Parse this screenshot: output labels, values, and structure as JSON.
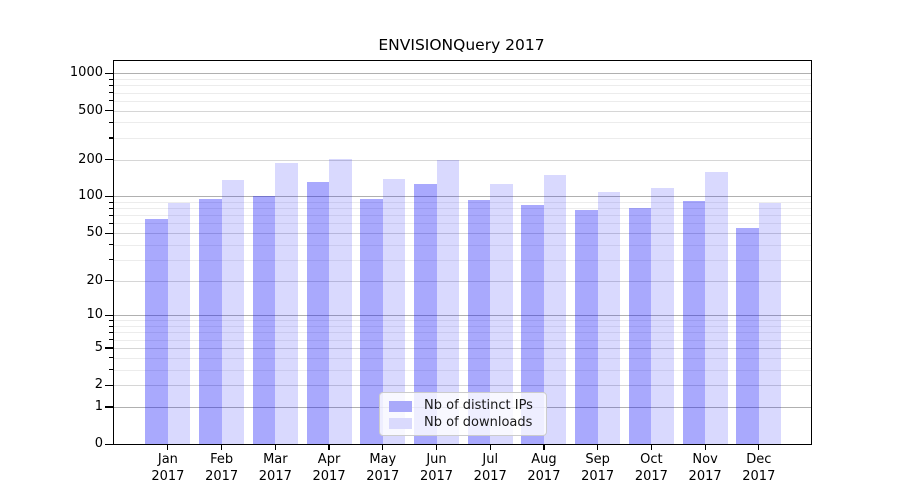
{
  "chart_data": {
    "type": "bar",
    "title": "ENVISIONQuery 2017",
    "xlabel": "",
    "ylabel": "",
    "yscale": "log10(value+1)",
    "ylim": [
      0,
      1261
    ],
    "grid": "major and minor horizontal gridlines",
    "legend_position": "lower center",
    "y_tick_labels": [
      1000,
      500,
      200,
      100,
      50,
      20,
      10,
      5,
      2,
      1,
      0
    ],
    "categories": [
      "Jan 2017",
      "Feb 2017",
      "Mar 2017",
      "Apr 2017",
      "May 2017",
      "Jun 2017",
      "Jul 2017",
      "Aug 2017",
      "Sep 2017",
      "Oct 2017",
      "Nov 2017",
      "Dec 2017"
    ],
    "series": [
      {
        "name": "Nb of distinct IPs",
        "color": "rgba(10,10,250,0.35)",
        "swatch_hex": "#a9a9fa",
        "values": [
          65,
          96,
          100,
          130,
          95,
          127,
          94,
          85,
          77,
          80,
          91,
          55
        ]
      },
      {
        "name": "Nb of downloads",
        "color": "rgba(10,10,250,0.155)",
        "swatch_hex": "#dadafd",
        "values": [
          89,
          136,
          187,
          203,
          140,
          197,
          127,
          150,
          109,
          118,
          158,
          89
        ]
      }
    ],
    "colors": {
      "major_gridline": "#b0b0b0",
      "labeled_minor_gridline": "#d6d6d6",
      "minor_gridline": "#ececec",
      "axis_frame": "#000000",
      "background": "#ffffff"
    }
  }
}
